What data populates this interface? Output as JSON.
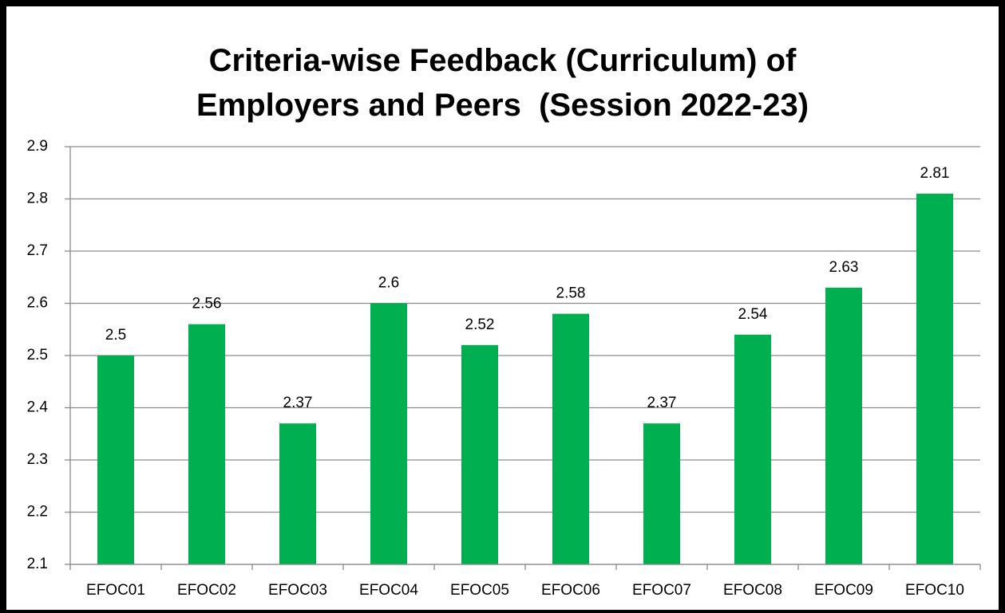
{
  "chart_data": {
    "type": "bar",
    "title": "Criteria-wise Feedback (Curriculum) of\nEmployers and Peers  (Session 2022-23)",
    "categories": [
      "EFOC01",
      "EFOC02",
      "EFOC03",
      "EFOC04",
      "EFOC05",
      "EFOC06",
      "EFOC07",
      "EFOC08",
      "EFOC09",
      "EFOC10"
    ],
    "values": [
      2.5,
      2.56,
      2.37,
      2.6,
      2.52,
      2.58,
      2.37,
      2.54,
      2.63,
      2.81
    ],
    "color": "#00b050",
    "ylim": [
      2.1,
      2.9
    ],
    "yticks": [
      2.1,
      2.2,
      2.3,
      2.4,
      2.5,
      2.6,
      2.7,
      2.8,
      2.9
    ],
    "grid": true
  }
}
